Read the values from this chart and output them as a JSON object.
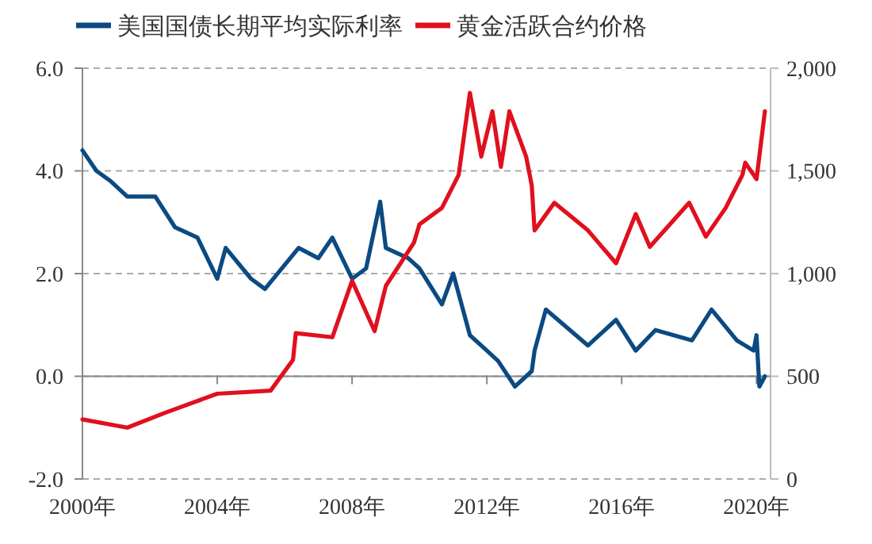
{
  "chart_data": {
    "type": "line",
    "legend": "top",
    "grid": "y",
    "line_style": "solid",
    "xlim": [
      "2000-01-01",
      "2020-06-01"
    ],
    "xticks": [
      {
        "value": "2000-01-01",
        "label": "2000年"
      },
      {
        "value": "2004-01-01",
        "label": "2004年"
      },
      {
        "value": "2008-01-01",
        "label": "2008年"
      },
      {
        "value": "2012-01-01",
        "label": "2012年"
      },
      {
        "value": "2016-01-01",
        "label": "2016年"
      },
      {
        "value": "2020-01-01",
        "label": "2020年"
      }
    ],
    "ylim": [
      -2,
      6
    ],
    "yticks": [
      {
        "value": -2,
        "label": "-2.0"
      },
      {
        "value": 0,
        "label": "0.0"
      },
      {
        "value": 2,
        "label": "2.0"
      },
      {
        "value": 4,
        "label": "4.0"
      },
      {
        "value": 6,
        "label": "6.0"
      }
    ],
    "y2lim": [
      0,
      2000
    ],
    "y2ticks": [
      0,
      500,
      {
        "value": 1000,
        "label": "1,000"
      },
      {
        "value": 1500,
        "label": "1,500"
      },
      {
        "value": 2000,
        "label": "2,000"
      }
    ],
    "series": [
      {
        "name": "美国国债长期平均实际利率",
        "color": "#0b4a82",
        "x": [
          "2000-01",
          "2000-06",
          "2000-11",
          "2001-05",
          "2002-03",
          "2002-10",
          "2003-06",
          "2004-01",
          "2004-04",
          "2005-01",
          "2005-06",
          "2006-06",
          "2007-01",
          "2007-06",
          "2008-01",
          "2008-06",
          "2008-11",
          "2009-01",
          "2009-09",
          "2010-01",
          "2010-09",
          "2011-01",
          "2011-07",
          "2012-01",
          "2012-05",
          "2012-11",
          "2013-05",
          "2013-06",
          "2013-10",
          "2015-01",
          "2015-11",
          "2016-06",
          "2017-01",
          "2018-02",
          "2018-09",
          "2019-06",
          "2019-12",
          "2020-01",
          "2020-02",
          "2020-04"
        ],
        "values": [
          4.4,
          4.0,
          3.8,
          3.5,
          3.5,
          2.9,
          2.7,
          1.9,
          2.5,
          1.9,
          1.7,
          2.5,
          2.3,
          2.7,
          1.9,
          2.1,
          3.4,
          2.5,
          2.3,
          2.1,
          1.4,
          2.0,
          0.8,
          0.5,
          0.3,
          -0.2,
          0.1,
          0.5,
          1.3,
          0.6,
          1.1,
          0.5,
          0.9,
          0.7,
          1.3,
          0.7,
          0.5,
          0.8,
          -0.2,
          0.0
        ]
      },
      {
        "name": "黄金活跃合约价格",
        "color": "#e0101e",
        "axis": "y2",
        "x": [
          "2000-01",
          "2001-05",
          "2002-06",
          "2004-01",
          "2005-08",
          "2006-04",
          "2006-05",
          "2007-06",
          "2008-01",
          "2008-09",
          "2009-01",
          "2009-11",
          "2010-01",
          "2010-09",
          "2011-03",
          "2011-07",
          "2011-11",
          "2012-03",
          "2012-06",
          "2012-09",
          "2013-03",
          "2013-05",
          "2013-06",
          "2014-01",
          "2015-01",
          "2015-11",
          "2016-06",
          "2016-11",
          "2018-01",
          "2018-07",
          "2019-02",
          "2019-08",
          "2019-09",
          "2020-01",
          "2020-04"
        ],
        "values": [
          290,
          250,
          320,
          415,
          430,
          580,
          710,
          690,
          965,
          720,
          940,
          1150,
          1240,
          1320,
          1480,
          1880,
          1570,
          1790,
          1520,
          1790,
          1570,
          1430,
          1210,
          1345,
          1210,
          1050,
          1290,
          1130,
          1345,
          1180,
          1320,
          1480,
          1540,
          1460,
          1790
        ]
      }
    ]
  }
}
